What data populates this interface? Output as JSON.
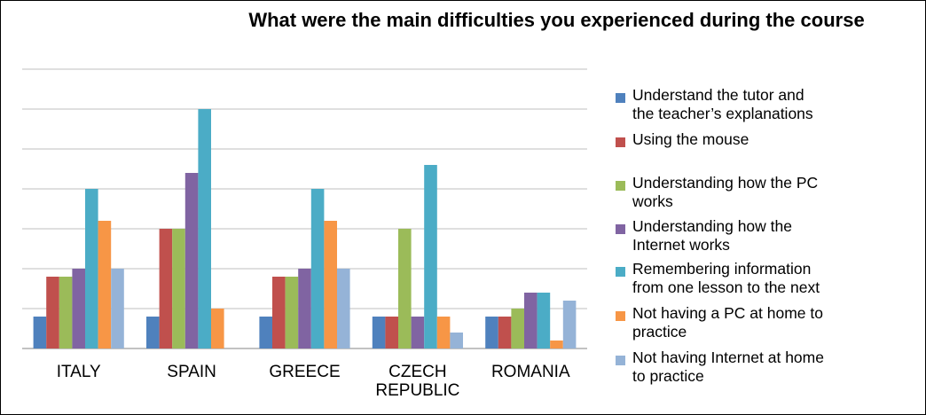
{
  "chart_data": {
    "type": "bar",
    "title": "What were the main difficulties you experienced during the course",
    "categories": [
      "ITALY",
      "SPAIN",
      "GREECE",
      "CZECH REPUBLIC",
      "ROMANIA"
    ],
    "category_lines": [
      [
        "ITALY"
      ],
      [
        "SPAIN"
      ],
      [
        "GREECE"
      ],
      [
        "CZECH",
        "REPUBLIC"
      ],
      [
        "ROMANIA"
      ]
    ],
    "ylim": [
      0,
      7
    ],
    "grid": true,
    "legend_position": "right",
    "series": [
      {
        "name": "Understand the tutor and the teacher’s explanations",
        "label_lines": [
          "Understand the tutor and",
          "the teacher’s explanations"
        ],
        "color": "#4F81BD",
        "values": [
          0.8,
          0.8,
          0.8,
          0.8,
          0.8
        ]
      },
      {
        "name": "Using the mouse",
        "label_lines": [
          "Using the mouse"
        ],
        "color": "#C0504D",
        "values": [
          1.8,
          3.0,
          1.8,
          0.8,
          0.8
        ]
      },
      {
        "name": "Understanding how the PC works",
        "label_lines": [
          "Understanding how the PC",
          "works"
        ],
        "color": "#9BBB59",
        "values": [
          1.8,
          3.0,
          1.8,
          3.0,
          1.0
        ]
      },
      {
        "name": "Understanding how the Internet works",
        "label_lines": [
          "Understanding how the",
          "Internet works"
        ],
        "color": "#8064A2",
        "values": [
          2.0,
          4.4,
          2.0,
          0.8,
          1.4
        ]
      },
      {
        "name": "Remembering information from one lesson to the next",
        "label_lines": [
          "Remembering information",
          "from one lesson to the next"
        ],
        "color": "#4BACC6",
        "values": [
          4.0,
          6.0,
          4.0,
          4.6,
          1.4
        ]
      },
      {
        "name": "Not having a PC at home to practice",
        "label_lines": [
          "Not having a PC at home to",
          "practice"
        ],
        "color": "#F79646",
        "values": [
          3.2,
          1.0,
          3.2,
          0.8,
          0.2
        ]
      },
      {
        "name": "Not having Internet at home to practice",
        "label_lines": [
          "Not having Internet at home",
          "to practice"
        ],
        "color": "#95B3D7",
        "values": [
          2.0,
          0.0,
          2.0,
          0.4,
          1.2
        ]
      }
    ]
  }
}
